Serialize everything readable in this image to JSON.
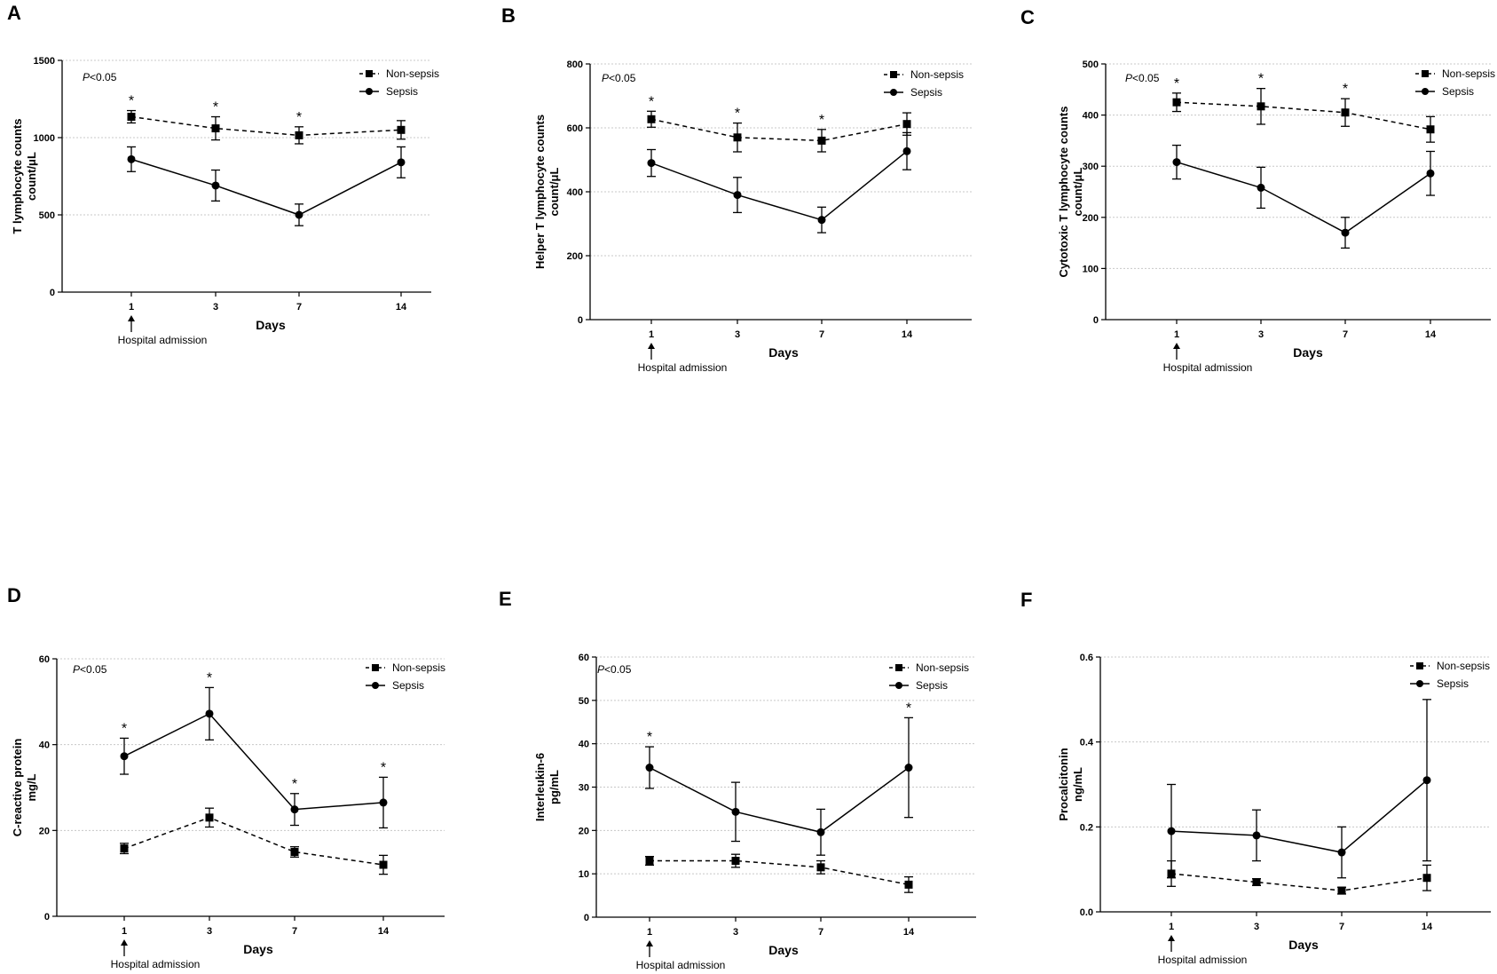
{
  "chart_data": [
    {
      "panel": "A",
      "type": "line",
      "ylabel": [
        "T lymphocyte counts",
        "count/μL"
      ],
      "xlabel": "Days",
      "categories": [
        "1",
        "3",
        "7",
        "14"
      ],
      "ylim": [
        0,
        1500
      ],
      "yticks": [
        0,
        500,
        1000,
        1500
      ],
      "pvalue": {
        "italic": "P",
        "rest": "<0.05"
      },
      "annotation": "Hospital admission",
      "legend": {
        "position": "top-right"
      },
      "series": [
        {
          "name": "Non-sepsis",
          "style": "dashed",
          "marker": "square",
          "values": [
            1135,
            1060,
            1015,
            1050
          ],
          "err": [
            40,
            75,
            55,
            60
          ]
        },
        {
          "name": "Sepsis",
          "style": "solid",
          "marker": "circle",
          "values": [
            860,
            690,
            500,
            840
          ],
          "err": [
            80,
            100,
            70,
            100
          ]
        }
      ],
      "significance": {
        "label": "*",
        "indices": [
          0,
          1,
          2
        ]
      }
    },
    {
      "panel": "B",
      "type": "line",
      "ylabel": [
        "Helper T lymphocyte counts",
        "count/μL"
      ],
      "xlabel": "Days",
      "categories": [
        "1",
        "3",
        "7",
        "14"
      ],
      "ylim": [
        0,
        800
      ],
      "yticks": [
        0,
        200,
        400,
        600,
        800
      ],
      "pvalue": {
        "italic": "P",
        "rest": "<0.05"
      },
      "annotation": "Hospital admission",
      "legend": {
        "position": "top-right"
      },
      "series": [
        {
          "name": "Non-sepsis",
          "style": "dashed",
          "marker": "square",
          "values": [
            627,
            570,
            560,
            612
          ],
          "err": [
            25,
            45,
            35,
            35
          ]
        },
        {
          "name": "Sepsis",
          "style": "solid",
          "marker": "circle",
          "values": [
            490,
            390,
            312,
            527
          ],
          "err": [
            42,
            55,
            40,
            58
          ]
        }
      ],
      "significance": {
        "label": "*",
        "indices": [
          0,
          1,
          2
        ]
      }
    },
    {
      "panel": "C",
      "type": "line",
      "ylabel": [
        "Cytotoxic T lymphocyte counts",
        "count/μL"
      ],
      "xlabel": "Days",
      "categories": [
        "1",
        "3",
        "7",
        "14"
      ],
      "ylim": [
        0,
        500
      ],
      "yticks": [
        0,
        100,
        200,
        300,
        400,
        500
      ],
      "pvalue": {
        "italic": "P",
        "rest": "<0.05"
      },
      "annotation": "Hospital admission",
      "legend": {
        "position": "top-right"
      },
      "series": [
        {
          "name": "Non-sepsis",
          "style": "dashed",
          "marker": "square",
          "values": [
            425,
            417,
            405,
            372
          ],
          "err": [
            18,
            35,
            27,
            25
          ]
        },
        {
          "name": "Sepsis",
          "style": "solid",
          "marker": "circle",
          "values": [
            308,
            258,
            170,
            286
          ],
          "err": [
            33,
            40,
            30,
            43
          ]
        }
      ],
      "significance": {
        "label": "*",
        "indices": [
          0,
          1,
          2
        ]
      }
    },
    {
      "panel": "D",
      "type": "line",
      "ylabel": [
        "C-reactive protein",
        "mg/L"
      ],
      "xlabel": "Days",
      "categories": [
        "1",
        "3",
        "7",
        "14"
      ],
      "ylim": [
        0,
        60
      ],
      "yticks": [
        0,
        20,
        40,
        60
      ],
      "pvalue": {
        "italic": "P",
        "rest": "<0.05"
      },
      "annotation": "Hospital admission",
      "legend": {
        "position": "top-right"
      },
      "series": [
        {
          "name": "Non-sepsis",
          "style": "dashed",
          "marker": "square",
          "values": [
            15.8,
            23,
            15,
            12
          ],
          "err": [
            1.2,
            2.2,
            1.2,
            2.2
          ]
        },
        {
          "name": "Sepsis",
          "style": "solid",
          "marker": "circle",
          "values": [
            37.3,
            47.2,
            24.9,
            26.5
          ],
          "err": [
            4.2,
            6.1,
            3.7,
            5.9
          ]
        }
      ],
      "significance": {
        "label": "*",
        "indices": [
          0,
          1,
          2,
          3
        ]
      }
    },
    {
      "panel": "E",
      "type": "line",
      "ylabel": [
        "Interleukin-6",
        "pg/mL"
      ],
      "xlabel": "Days",
      "categories": [
        "1",
        "3",
        "7",
        "14"
      ],
      "ylim": [
        0,
        60
      ],
      "yticks": [
        0,
        10,
        20,
        30,
        40,
        50,
        60
      ],
      "pvalue": {
        "italic": "P",
        "rest": "<0.05"
      },
      "annotation": "Hospital admission",
      "legend": {
        "position": "top-right"
      },
      "series": [
        {
          "name": "Non-sepsis",
          "style": "dashed",
          "marker": "square",
          "values": [
            13,
            13,
            11.5,
            7.5
          ],
          "err": [
            1,
            1.5,
            1.5,
            1.8
          ]
        },
        {
          "name": "Sepsis",
          "style": "solid",
          "marker": "circle",
          "values": [
            34.5,
            24.3,
            19.6,
            34.5
          ],
          "err": [
            4.8,
            6.8,
            5.3,
            11.5
          ]
        }
      ],
      "significance": {
        "label": "*",
        "indices": [
          0,
          3
        ]
      }
    },
    {
      "panel": "F",
      "type": "line",
      "ylabel": [
        "Procalcitonin",
        "ng/mL"
      ],
      "xlabel": "Days",
      "categories": [
        "1",
        "3",
        "7",
        "14"
      ],
      "ylim": [
        0,
        0.6
      ],
      "yticks": [
        "0.0",
        "0.2",
        "0.4",
        "0.6"
      ],
      "annotation": "Hospital admission",
      "legend": {
        "position": "top-right"
      },
      "series": [
        {
          "name": "Non-sepsis",
          "style": "dashed",
          "marker": "square",
          "values": [
            0.09,
            0.07,
            0.05,
            0.08
          ],
          "err": [
            0.03,
            0.008,
            0.008,
            0.03
          ]
        },
        {
          "name": "Sepsis",
          "style": "solid",
          "marker": "circle",
          "values": [
            0.19,
            0.18,
            0.14,
            0.31
          ],
          "err": [
            0.11,
            0.06,
            0.06,
            0.19
          ]
        }
      ],
      "significance": {
        "label": "*",
        "indices": []
      }
    }
  ]
}
